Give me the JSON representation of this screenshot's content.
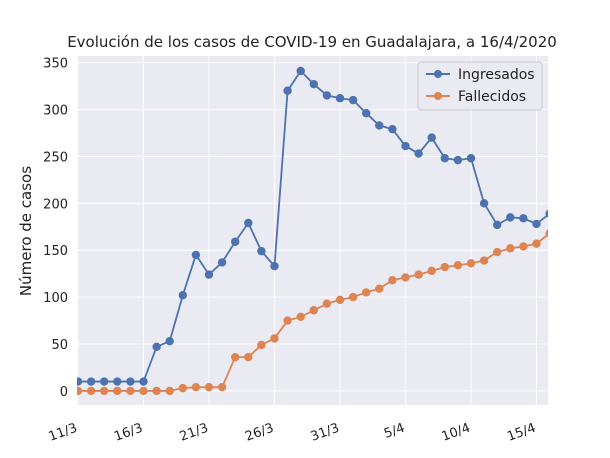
{
  "chart_data": {
    "type": "line",
    "title": "Evolución de los casos de COVID-19 en Guadalajara, a 16/4/2020",
    "xlabel": "",
    "ylabel": "Número de casos",
    "ylim": [
      -15,
      357
    ],
    "yticks": [
      0,
      50,
      100,
      150,
      200,
      250,
      300,
      350
    ],
    "x_days": [
      0,
      1,
      2,
      3,
      4,
      5,
      6,
      7,
      8,
      9,
      10,
      11,
      12,
      13,
      14,
      15,
      16,
      17,
      18,
      19,
      20,
      21,
      22,
      23,
      24,
      25,
      26,
      27,
      28,
      29,
      30,
      31,
      32,
      33,
      34,
      35,
      36
    ],
    "xticks": [
      {
        "day": 0,
        "label": "11/3"
      },
      {
        "day": 5,
        "label": "16/3"
      },
      {
        "day": 10,
        "label": "21/3"
      },
      {
        "day": 15,
        "label": "26/3"
      },
      {
        "day": 20,
        "label": "31/3"
      },
      {
        "day": 25,
        "label": "5/4"
      },
      {
        "day": 30,
        "label": "10/4"
      },
      {
        "day": 35,
        "label": "15/4"
      }
    ],
    "grid": true,
    "legend_position": "top-right",
    "series": [
      {
        "name": "Ingresados",
        "color": "#4c72b0",
        "values": [
          10,
          10,
          10,
          10,
          10,
          10,
          47,
          53,
          102,
          145,
          124,
          137,
          159,
          179,
          149,
          133,
          320,
          341,
          327,
          315,
          312,
          310,
          296,
          283,
          279,
          261,
          253,
          270,
          248,
          246,
          248,
          200,
          177,
          185,
          184,
          178,
          189
        ]
      },
      {
        "name": "Fallecidos",
        "color": "#dd8452",
        "values": [
          0,
          0,
          0,
          0,
          0,
          0,
          0,
          0,
          3,
          4,
          4,
          4,
          36,
          36,
          49,
          56,
          75,
          79,
          86,
          93,
          97,
          100,
          105,
          109,
          118,
          121,
          124,
          128,
          132,
          134,
          136,
          139,
          148,
          152,
          154,
          157,
          168
        ]
      }
    ]
  }
}
